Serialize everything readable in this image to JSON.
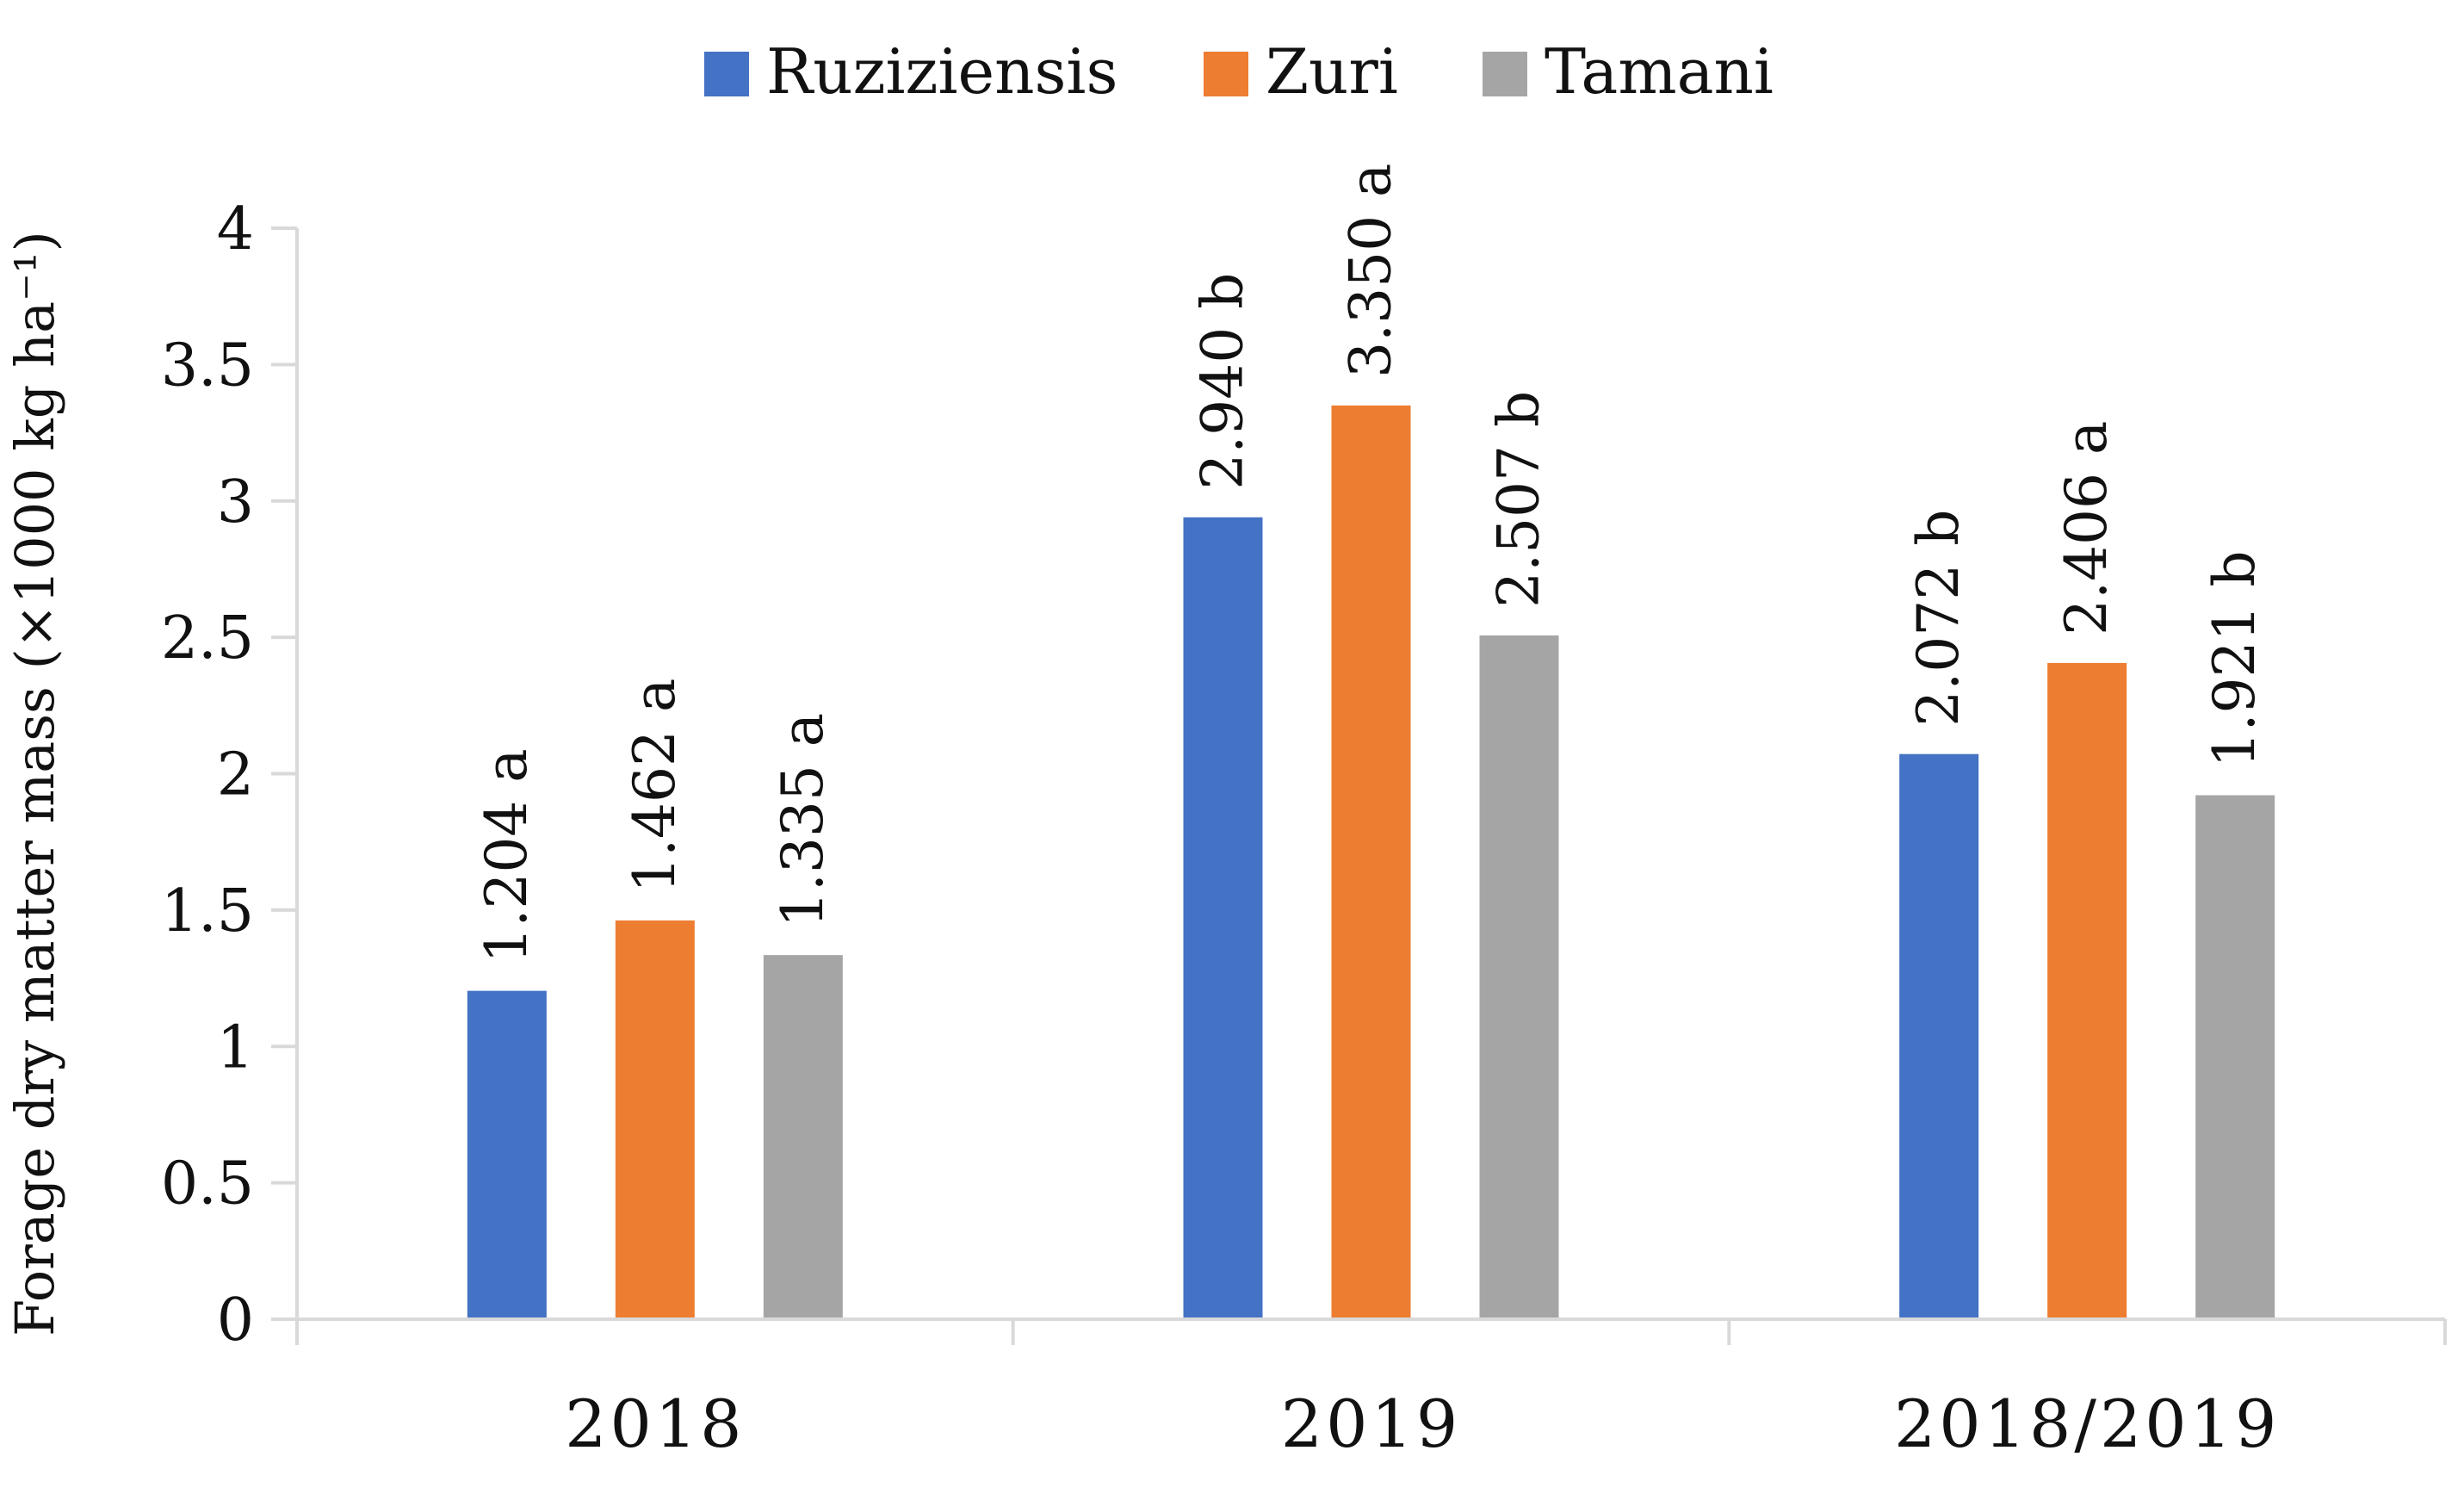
{
  "chart_data": {
    "type": "bar",
    "title": "",
    "xlabel": "",
    "ylabel": "Forage dry matter mass (×1000 kg ha⁻¹)",
    "ylim": [
      0,
      4
    ],
    "yticks": [
      0,
      0.5,
      1,
      1.5,
      2,
      2.5,
      3,
      3.5,
      4
    ],
    "yticklabels": [
      "0",
      "0.5",
      "1",
      "1.5",
      "2",
      "2.5",
      "3",
      "3.5",
      "4"
    ],
    "grid": false,
    "legend_position": "top-center",
    "categories": [
      "2018",
      "2019",
      "2018/2019"
    ],
    "series": [
      {
        "name": "Ruziziensis",
        "color": "#4472C4",
        "values": [
          1.204,
          2.94,
          2.072
        ],
        "labels": [
          "1.204 a",
          "2.940 b",
          "2.072 b"
        ]
      },
      {
        "name": "Zuri",
        "color": "#ED7D31",
        "values": [
          1.462,
          3.35,
          2.406
        ],
        "labels": [
          "1.462 a",
          "3.350 a",
          "2.406 a"
        ]
      },
      {
        "name": "Tamani",
        "color": "#A5A5A5",
        "values": [
          1.335,
          2.507,
          1.921
        ],
        "labels": [
          "1.335 a",
          "2.507 b",
          "1.921 b"
        ]
      }
    ]
  }
}
